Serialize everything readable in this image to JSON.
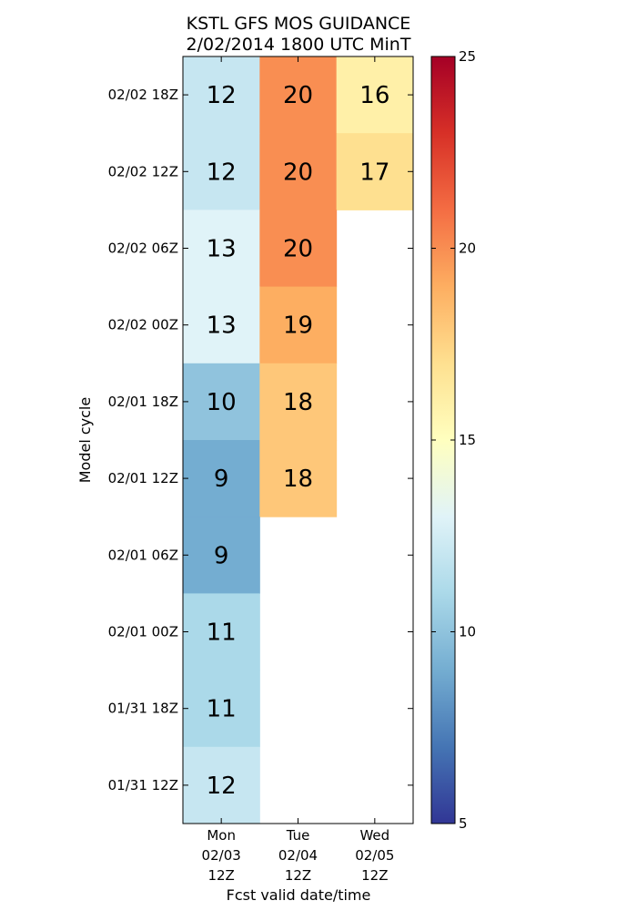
{
  "chart_data": {
    "type": "heatmap",
    "title": [
      "KSTL GFS MOS GUIDANCE",
      "2/02/2014 1800 UTC MinT"
    ],
    "xlabel": "Fcst valid date/time",
    "ylabel": "Model cycle",
    "x_categories": [
      [
        "Mon",
        "02/03",
        "12Z"
      ],
      [
        "Tue",
        "02/04",
        "12Z"
      ],
      [
        "Wed",
        "02/05",
        "12Z"
      ]
    ],
    "y_categories": [
      "02/02 18Z",
      "02/02 12Z",
      "02/02 06Z",
      "02/02 00Z",
      "02/01 18Z",
      "02/01 12Z",
      "02/01 06Z",
      "02/01 00Z",
      "01/31 18Z",
      "01/31 12Z"
    ],
    "values": [
      [
        12,
        20,
        16
      ],
      [
        12,
        20,
        17
      ],
      [
        13,
        20,
        null
      ],
      [
        13,
        19,
        null
      ],
      [
        10,
        18,
        null
      ],
      [
        9,
        18,
        null
      ],
      [
        9,
        null,
        null
      ],
      [
        11,
        null,
        null
      ],
      [
        11,
        null,
        null
      ],
      [
        12,
        null,
        null
      ]
    ],
    "colorbar": {
      "min": 5,
      "max": 25,
      "ticks": [
        5,
        10,
        15,
        20,
        25
      ],
      "colormap": "RdYlBu_r",
      "colors": [
        "#313695",
        "#4575b4",
        "#74add1",
        "#abd9e9",
        "#e0f3f8",
        "#ffffbf",
        "#fee090",
        "#fdae61",
        "#f46d43",
        "#d73027",
        "#a50026"
      ]
    }
  }
}
